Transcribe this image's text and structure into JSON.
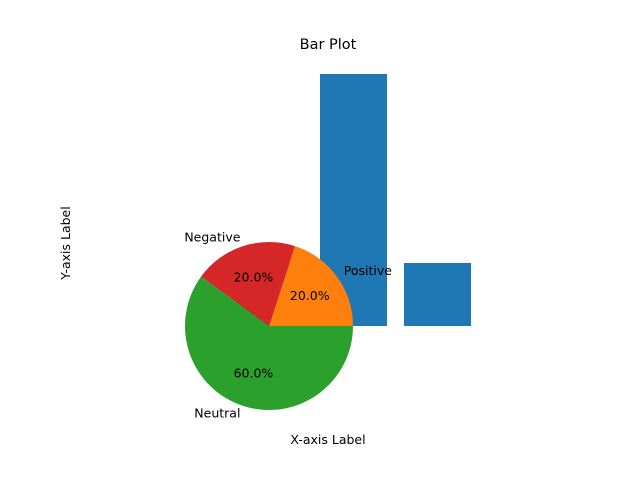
{
  "chart_data": [
    {
      "type": "bar",
      "title": "Bar Plot",
      "xlabel": "X-axis Label",
      "ylabel": "Y-axis Label",
      "categories": [
        "",
        "",
        ""
      ],
      "values": [
        1,
        4,
        1
      ],
      "ylim": [
        0,
        4
      ],
      "grid": false,
      "color": "#1f77b4"
    },
    {
      "type": "pie",
      "labels": [
        "Positive",
        "Negative",
        "Neutral"
      ],
      "values": [
        20,
        20,
        60
      ],
      "autopct": [
        "20.0%",
        "20.0%",
        "60.0%"
      ],
      "colors": [
        "#ff7f0e",
        "#d62728",
        "#2ca02c"
      ],
      "start_angle_deg": 0
    }
  ]
}
